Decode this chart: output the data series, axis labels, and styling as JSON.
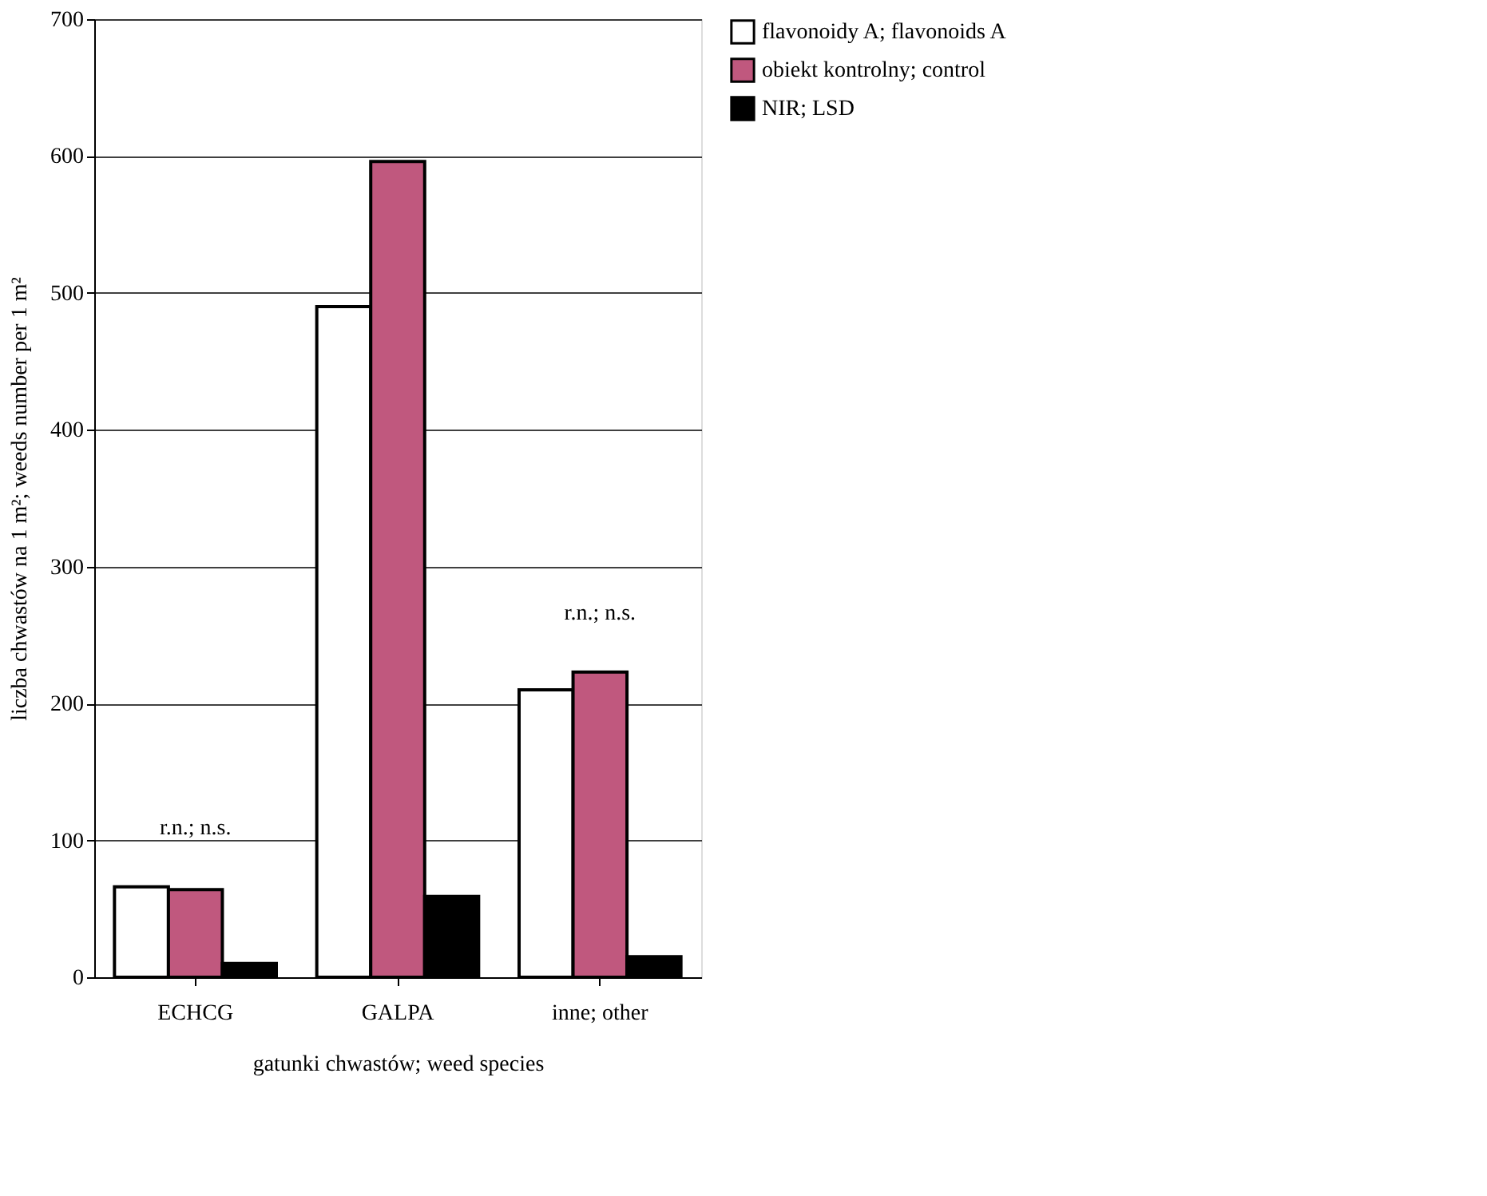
{
  "chart_data": {
    "type": "bar",
    "categories": [
      "ECHCG",
      "GALPA",
      "inne; other"
    ],
    "series": [
      {
        "name": "flavonoidy A; flavonoids A",
        "color": "#ffffff",
        "values": [
          66,
          490,
          210
        ]
      },
      {
        "name": "obiekt kontrolny; control",
        "color": "#c0587e",
        "values": [
          64,
          596,
          223
        ]
      },
      {
        "name": "NIR; LSD",
        "color": "#000000",
        "values": [
          10,
          59,
          15
        ]
      }
    ],
    "xlabel": "gatunki chwastów; weed species",
    "ylabel": "liczba chwastów na 1 m²; weeds number per 1 m²",
    "ylim": [
      0,
      700
    ],
    "yticks": [
      0,
      100,
      200,
      300,
      400,
      500,
      600,
      700
    ],
    "grid": "y",
    "legend": "right",
    "annotations": [
      "r.n.; n.s.",
      "r.n.; n.s."
    ]
  }
}
